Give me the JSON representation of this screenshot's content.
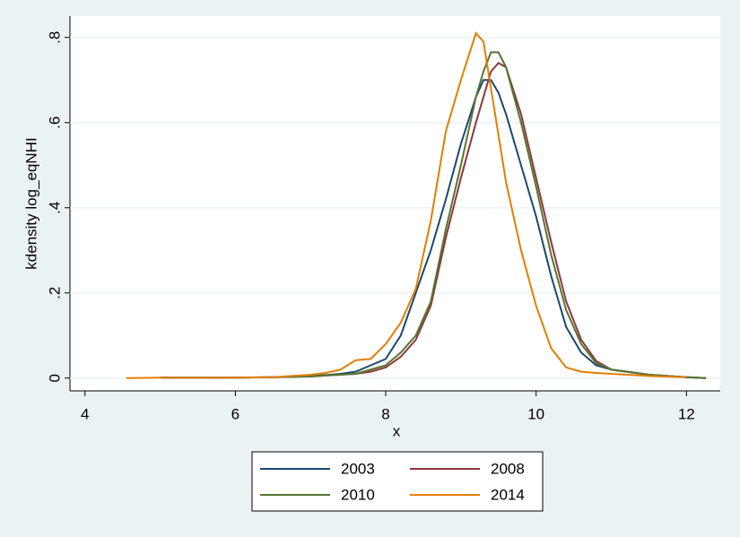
{
  "chart_data": {
    "type": "line",
    "x_label": "x",
    "y_label": "kdensity log_eqNHI",
    "xlim": [
      3.8,
      12.45
    ],
    "ylim": [
      -0.03,
      0.85
    ],
    "xticks": [
      4,
      6,
      8,
      10,
      12
    ],
    "yticks": [
      0,
      {
        "value": 0.2,
        "label": ".2"
      },
      {
        "value": 0.4,
        "label": ".4"
      },
      {
        "value": 0.6,
        "label": ".6"
      },
      {
        "value": 0.8,
        "label": ".8"
      }
    ],
    "grid": true,
    "legend": "bottom",
    "x": [
      4.55,
      5,
      5.5,
      6,
      6.5,
      7,
      7.2,
      7.4,
      7.6,
      7.8,
      8,
      8.2,
      8.4,
      8.6,
      8.8,
      9,
      9.2,
      9.3,
      9.4,
      9.5,
      9.6,
      9.8,
      10,
      10.2,
      10.4,
      10.6,
      10.8,
      11,
      11.5,
      12,
      12.26
    ],
    "series": [
      {
        "name": "2003",
        "color": "#1a476f",
        "values": [
          null,
          0.001,
          0.001,
          0.001,
          0.002,
          0.005,
          0.007,
          0.01,
          0.015,
          0.03,
          0.045,
          0.1,
          0.2,
          0.3,
          0.42,
          0.55,
          0.66,
          0.7,
          0.7,
          0.67,
          0.62,
          0.5,
          0.38,
          0.24,
          0.12,
          0.06,
          0.03,
          0.02,
          0.008,
          0.002,
          0
        ]
      },
      {
        "name": "2008",
        "color": "#90353b",
        "values": [
          null,
          0.001,
          0.001,
          0.001,
          0.002,
          0.004,
          0.006,
          0.008,
          0.01,
          0.015,
          0.025,
          0.05,
          0.09,
          0.17,
          0.33,
          0.47,
          0.6,
          0.66,
          0.72,
          0.74,
          0.73,
          0.62,
          0.47,
          0.32,
          0.18,
          0.09,
          0.04,
          0.02,
          0.008,
          0.002,
          0
        ]
      },
      {
        "name": "2010",
        "color": "#55752f",
        "values": [
          null,
          0.001,
          0.001,
          0.001,
          0.002,
          0.004,
          0.006,
          0.008,
          0.01,
          0.02,
          0.03,
          0.06,
          0.1,
          0.18,
          0.35,
          0.5,
          0.66,
          0.72,
          0.765,
          0.765,
          0.73,
          0.6,
          0.45,
          0.29,
          0.16,
          0.08,
          0.035,
          0.02,
          0.008,
          0.002,
          0
        ]
      },
      {
        "name": "2014",
        "color": "#e37e00",
        "values": [
          0,
          0.001,
          0.001,
          0.001,
          0.002,
          0.008,
          0.012,
          0.02,
          0.042,
          0.045,
          0.08,
          0.13,
          0.21,
          0.37,
          0.58,
          0.7,
          0.81,
          0.79,
          0.68,
          0.57,
          0.46,
          0.3,
          0.17,
          0.07,
          0.025,
          0.015,
          0.012,
          0.01,
          0.005,
          0.002,
          null
        ]
      }
    ]
  }
}
